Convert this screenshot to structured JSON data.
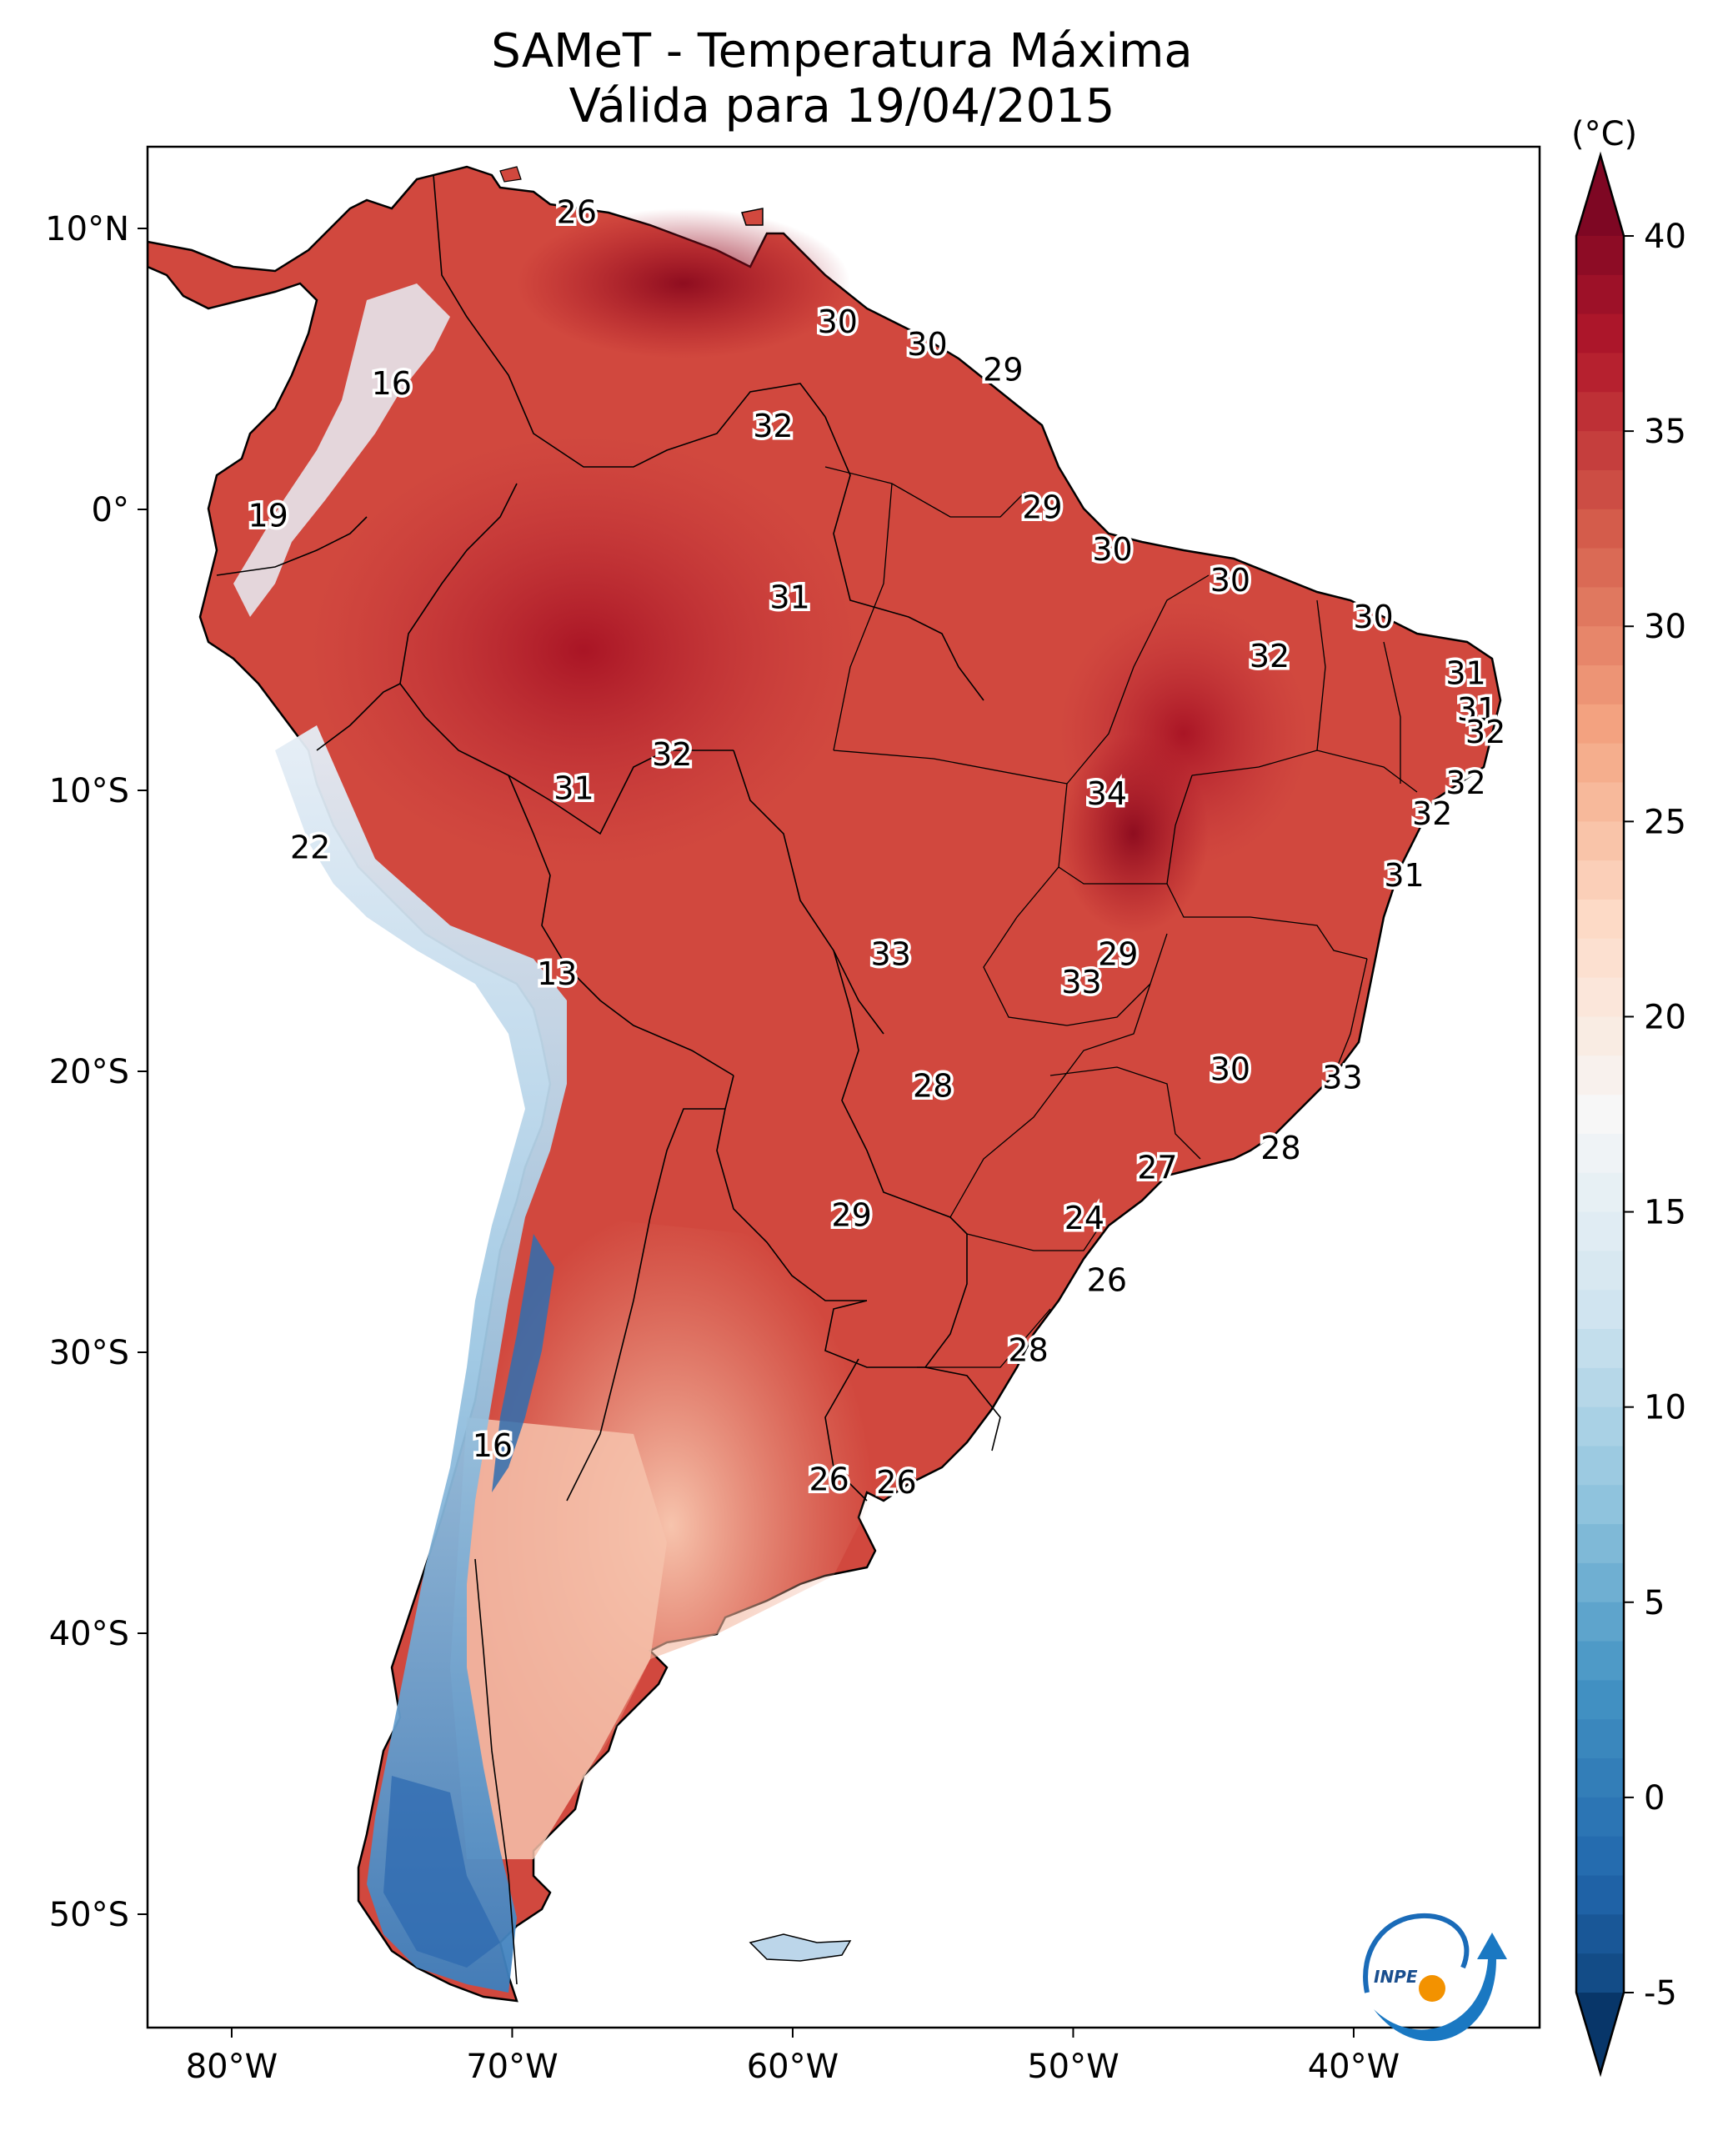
{
  "title": {
    "line1": "SAMeT - Temperatura Máxima",
    "line2": "Válida para 19/04/2015"
  },
  "colorbar": {
    "unit_label": "(°C)",
    "ticks": [
      "40",
      "35",
      "30",
      "25",
      "20",
      "15",
      "10",
      "5",
      "0",
      "-5"
    ],
    "min": -7,
    "max": 42,
    "colors": [
      "#053061",
      "#2166ac",
      "#4393c3",
      "#92c5de",
      "#d1e5f0",
      "#f7f7f7",
      "#fddbc7",
      "#f4a582",
      "#d6604d",
      "#b2182b",
      "#67001f"
    ]
  },
  "axes": {
    "lat_ticks": [
      "10°N",
      "0°",
      "10°S",
      "20°S",
      "30°S",
      "40°S",
      "50°S"
    ],
    "lon_ticks": [
      "80°W",
      "70°W",
      "60°W",
      "50°W",
      "40°W"
    ]
  },
  "map_labels": [
    {
      "text": "26",
      "lon": -67.7,
      "lat": 10.5
    },
    {
      "text": "16",
      "lon": -74.3,
      "lat": 4.4
    },
    {
      "text": "30",
      "lon": -58.4,
      "lat": 6.6
    },
    {
      "text": "30",
      "lon": -55.2,
      "lat": 5.8
    },
    {
      "text": "29",
      "lon": -52.5,
      "lat": 4.9
    },
    {
      "text": "32",
      "lon": -60.7,
      "lat": 2.9
    },
    {
      "text": "19",
      "lon": -78.7,
      "lat": -0.3
    },
    {
      "text": "29",
      "lon": -51.1,
      "lat": 0.0
    },
    {
      "text": "30",
      "lon": -48.6,
      "lat": -1.5
    },
    {
      "text": "31",
      "lon": -60.1,
      "lat": -3.2
    },
    {
      "text": "30",
      "lon": -44.4,
      "lat": -2.6
    },
    {
      "text": "30",
      "lon": -39.3,
      "lat": -3.9
    },
    {
      "text": "32",
      "lon": -43.0,
      "lat": -5.3
    },
    {
      "text": "31",
      "lon": -36.0,
      "lat": -5.9
    },
    {
      "text": "31",
      "lon": -35.6,
      "lat": -7.2
    },
    {
      "text": "32",
      "lon": -35.3,
      "lat": -8.0
    },
    {
      "text": "32",
      "lon": -64.3,
      "lat": -8.8
    },
    {
      "text": "31",
      "lon": -67.8,
      "lat": -10.0
    },
    {
      "text": "32",
      "lon": -36.0,
      "lat": -9.8
    },
    {
      "text": "34",
      "lon": -48.8,
      "lat": -10.2
    },
    {
      "text": "32",
      "lon": -37.2,
      "lat": -10.9
    },
    {
      "text": "22",
      "lon": -77.2,
      "lat": -12.1
    },
    {
      "text": "31",
      "lon": -38.2,
      "lat": -13.1
    },
    {
      "text": "33",
      "lon": -56.5,
      "lat": -15.9
    },
    {
      "text": "29",
      "lon": -48.4,
      "lat": -15.9
    },
    {
      "text": "13",
      "lon": -68.4,
      "lat": -16.6
    },
    {
      "text": "33",
      "lon": -49.7,
      "lat": -16.9
    },
    {
      "text": "30",
      "lon": -44.4,
      "lat": -20.0
    },
    {
      "text": "33",
      "lon": -40.4,
      "lat": -20.3
    },
    {
      "text": "28",
      "lon": -55.0,
      "lat": -20.6
    },
    {
      "text": "28",
      "lon": -42.6,
      "lat": -22.8
    },
    {
      "text": "27",
      "lon": -47.0,
      "lat": -23.5
    },
    {
      "text": "29",
      "lon": -57.9,
      "lat": -25.2
    },
    {
      "text": "24",
      "lon": -49.6,
      "lat": -25.3
    },
    {
      "text": "26",
      "lon": -48.8,
      "lat": -27.5
    },
    {
      "text": "28",
      "lon": -51.6,
      "lat": -30.0
    },
    {
      "text": "16",
      "lon": -70.7,
      "lat": -33.4
    },
    {
      "text": "26",
      "lon": -58.7,
      "lat": -34.6
    },
    {
      "text": "26",
      "lon": -56.3,
      "lat": -34.7
    }
  ],
  "logo_text": "INPE"
}
